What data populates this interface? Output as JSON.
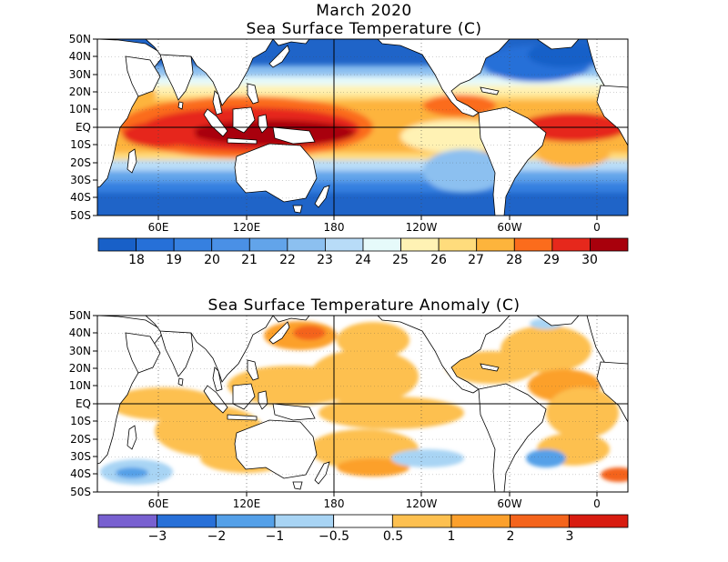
{
  "header": {
    "date": "March 2020"
  },
  "panels": [
    {
      "id": "sst",
      "title": "Sea Surface Temperature (C)",
      "lat_labels": [
        "50N",
        "40N",
        "30N",
        "20N",
        "10N",
        "EQ",
        "10S",
        "20S",
        "30S",
        "40S",
        "50S"
      ],
      "lon_labels": [
        "60E",
        "120E",
        "180",
        "120W",
        "60W",
        "0"
      ],
      "colorbar": {
        "labels": [
          "18",
          "19",
          "20",
          "21",
          "22",
          "23",
          "24",
          "25",
          "26",
          "27",
          "28",
          "29",
          "30"
        ],
        "colors": [
          "#1860c8",
          "#2670d8",
          "#3680e0",
          "#4a90e6",
          "#62a4ea",
          "#8cc0f0",
          "#b8dcf8",
          "#e6fafa",
          "#fff2b4",
          "#ffdc7c",
          "#fdb43c",
          "#fb6c1c",
          "#e6281c",
          "#a8000c"
        ]
      }
    },
    {
      "id": "anomaly",
      "title": "Sea Surface Temperature Anomaly (C)",
      "lat_labels": [
        "50N",
        "40N",
        "30N",
        "20N",
        "10N",
        "EQ",
        "10S",
        "20S",
        "30S",
        "40S",
        "50S"
      ],
      "lon_labels": [
        "60E",
        "120E",
        "180",
        "120W",
        "60W",
        "0"
      ],
      "colorbar": {
        "labels": [
          "−3",
          "−2",
          "−1",
          "−0.5",
          "0.5",
          "1",
          "2",
          "3"
        ],
        "colors": [
          "#7860d0",
          "#2870d8",
          "#54a0e8",
          "#a8d4f4",
          "#ffffff",
          "#fdc050",
          "#fca02c",
          "#f4641c",
          "#d81c10"
        ]
      }
    }
  ]
}
